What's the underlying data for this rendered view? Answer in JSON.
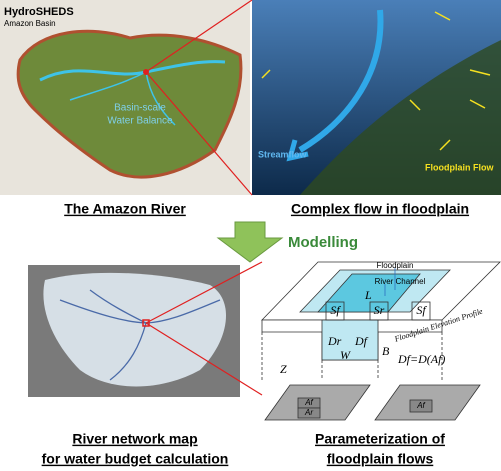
{
  "top_left": {
    "title": "HydroSHEDS",
    "subtitle": "Amazon Basin",
    "label_line1": "Basin-scale",
    "label_line2": "Water Balance",
    "caption": "The Amazon River"
  },
  "top_right": {
    "streamflow": "Streamflow",
    "floodplain_flow": "Floodplain Flow",
    "caption": "Complex flow in floodplain"
  },
  "arrow_label": "Modelling",
  "bottom_left": {
    "caption_line1": "River network map",
    "caption_line2": "for water budget calculation"
  },
  "bottom_right": {
    "floodplain": "Floodplain",
    "river_channel": "River Channel",
    "length": "L",
    "sf_left": "Sf",
    "sr": "Sr",
    "sf_right": "Sf",
    "profile": "Floodplain Elevation Profile",
    "dr": "Dr",
    "df": "Df",
    "width": "W",
    "bank": "B",
    "depth_z": "Z",
    "equation": "Df=D(Af)",
    "ar": "Ar",
    "af_bottom": "Af",
    "af_right": "Af",
    "caption_line1": "Parameterization of",
    "caption_line2": "floodplain flows"
  }
}
